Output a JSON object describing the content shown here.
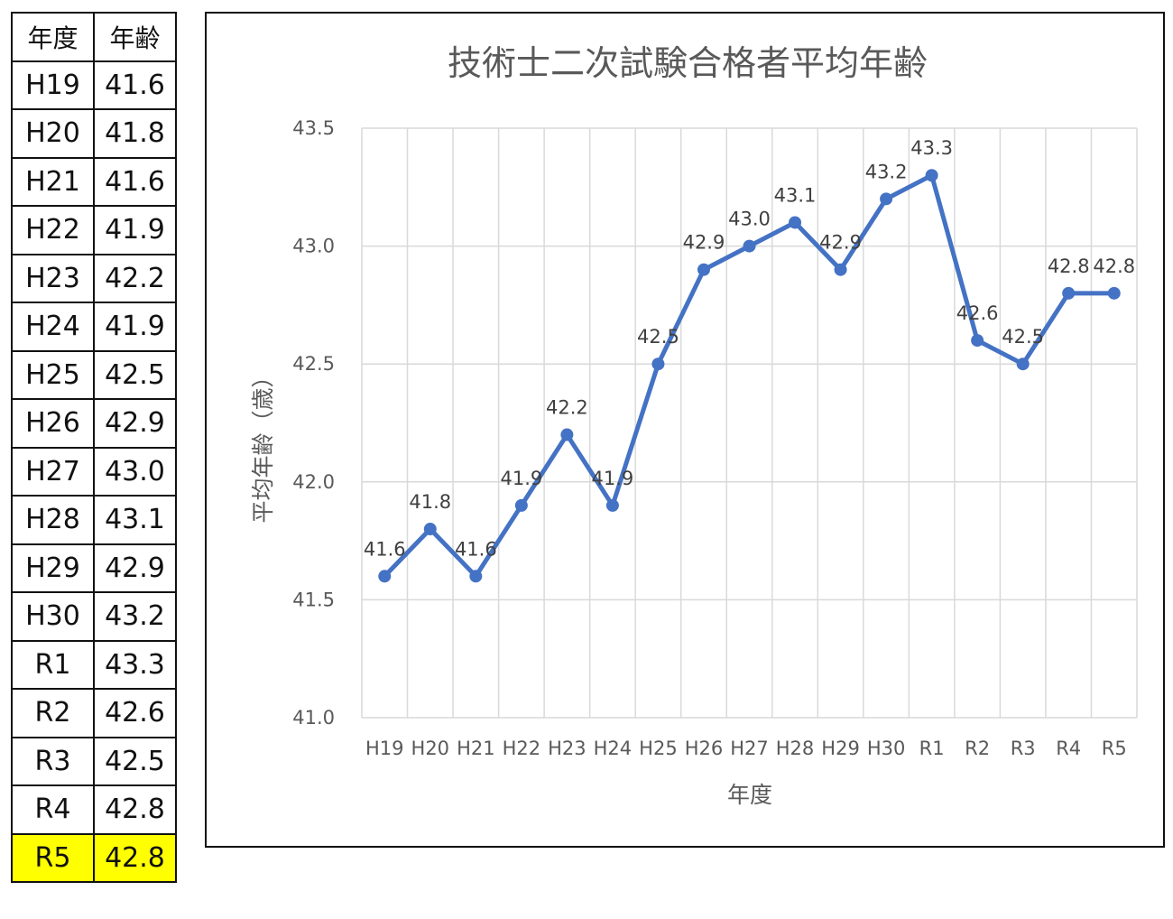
{
  "table": {
    "headers": [
      "年度",
      "年齢"
    ],
    "rows": [
      {
        "year": "H19",
        "age": "41.6"
      },
      {
        "year": "H20",
        "age": "41.8"
      },
      {
        "year": "H21",
        "age": "41.6"
      },
      {
        "year": "H22",
        "age": "41.9"
      },
      {
        "year": "H23",
        "age": "42.2"
      },
      {
        "year": "H24",
        "age": "41.9"
      },
      {
        "year": "H25",
        "age": "42.5"
      },
      {
        "year": "H26",
        "age": "42.9"
      },
      {
        "year": "H27",
        "age": "43.0"
      },
      {
        "year": "H28",
        "age": "43.1"
      },
      {
        "year": "H29",
        "age": "42.9"
      },
      {
        "year": "H30",
        "age": "43.2"
      },
      {
        "year": "R1",
        "age": "43.3"
      },
      {
        "year": "R2",
        "age": "42.6"
      },
      {
        "year": "R3",
        "age": "42.5"
      },
      {
        "year": "R4",
        "age": "42.8"
      },
      {
        "year": "R5",
        "age": "42.8"
      }
    ],
    "highlight_color": "#ffff00"
  },
  "chart_data": {
    "type": "line",
    "title": "技術士二次試験合格者平均年齢",
    "xlabel": "年度",
    "ylabel": "平均年齢（歳）",
    "categories": [
      "H19",
      "H20",
      "H21",
      "H22",
      "H23",
      "H24",
      "H25",
      "H26",
      "H27",
      "H28",
      "H29",
      "H30",
      "R1",
      "R2",
      "R3",
      "R4",
      "R5"
    ],
    "series": [
      {
        "values": [
          41.6,
          41.8,
          41.6,
          41.9,
          42.2,
          41.9,
          42.5,
          42.9,
          43.0,
          43.1,
          42.9,
          43.2,
          43.3,
          42.6,
          42.5,
          42.8,
          42.8
        ]
      }
    ],
    "data_labels": [
      "41.6",
      "41.8",
      "41.6",
      "41.9",
      "42.2",
      "41.9",
      "42.5",
      "42.9",
      "43.0",
      "43.1",
      "42.9",
      "43.2",
      "43.3",
      "42.6",
      "42.5",
      "42.8",
      "42.8"
    ],
    "ylim": [
      41.0,
      43.5
    ],
    "y_ticks": [
      41.0,
      41.5,
      42.0,
      42.5,
      43.0,
      43.5
    ],
    "y_tick_labels": [
      "41.0",
      "41.5",
      "42.0",
      "42.5",
      "43.0",
      "43.5"
    ],
    "grid": true,
    "markers": true,
    "legend": "none",
    "line_color": "#4472c4",
    "grid_color": "#d9d9d9"
  }
}
